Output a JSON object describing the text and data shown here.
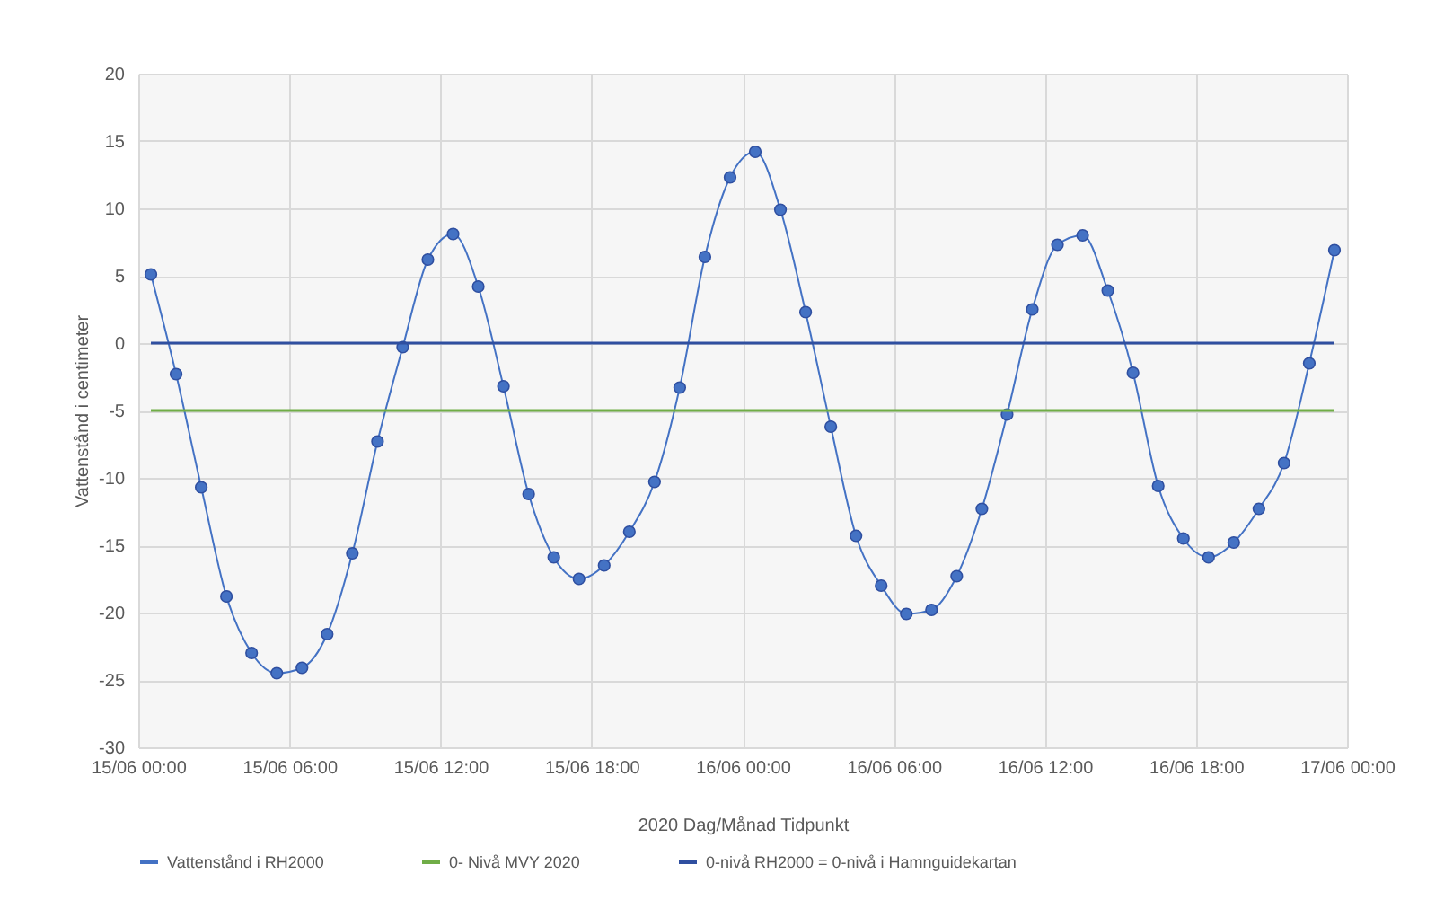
{
  "chart_data": {
    "type": "line",
    "xlabel": "2020 Dag/Månad Tidpunkt",
    "ylabel": "Vattenstånd i centimeter",
    "x": [
      "2020-06-15T00:30",
      "2020-06-15T01:30",
      "2020-06-15T02:30",
      "2020-06-15T03:30",
      "2020-06-15T04:30",
      "2020-06-15T05:30",
      "2020-06-15T06:30",
      "2020-06-15T07:30",
      "2020-06-15T08:30",
      "2020-06-15T09:30",
      "2020-06-15T10:30",
      "2020-06-15T11:30",
      "2020-06-15T12:30",
      "2020-06-15T13:30",
      "2020-06-15T14:30",
      "2020-06-15T15:30",
      "2020-06-15T16:30",
      "2020-06-15T17:30",
      "2020-06-15T18:30",
      "2020-06-15T19:30",
      "2020-06-15T20:30",
      "2020-06-15T21:30",
      "2020-06-15T22:30",
      "2020-06-15T23:30",
      "2020-06-16T00:30",
      "2020-06-16T01:30",
      "2020-06-16T02:30",
      "2020-06-16T03:30",
      "2020-06-16T04:30",
      "2020-06-16T05:30",
      "2020-06-16T06:30",
      "2020-06-16T07:30",
      "2020-06-16T08:30",
      "2020-06-16T09:30",
      "2020-06-16T10:30",
      "2020-06-16T11:30",
      "2020-06-16T12:30",
      "2020-06-16T13:30",
      "2020-06-16T14:30",
      "2020-06-16T15:30",
      "2020-06-16T16:30",
      "2020-06-16T17:30",
      "2020-06-16T18:30",
      "2020-06-16T19:30",
      "2020-06-16T20:30",
      "2020-06-16T21:30",
      "2020-06-16T22:30",
      "2020-06-16T23:30"
    ],
    "series": [
      {
        "name": "Vattenstånd i RH2000",
        "color": "#4472c4",
        "marker": "circle",
        "values": [
          5.1,
          -2.3,
          -10.7,
          -18.8,
          -23.0,
          -24.5,
          -24.1,
          -21.6,
          -15.6,
          -7.3,
          -0.3,
          6.2,
          8.1,
          4.2,
          -3.2,
          -11.2,
          -15.9,
          -17.5,
          -16.5,
          -14.0,
          -10.3,
          -3.3,
          6.4,
          12.3,
          14.2,
          9.9,
          2.3,
          -6.2,
          -14.3,
          -18.0,
          -20.1,
          -19.8,
          -17.3,
          -12.3,
          -5.3,
          2.5,
          7.3,
          8.0,
          3.9,
          -2.2,
          -10.6,
          -14.5,
          -15.9,
          -14.8,
          -12.3,
          -8.9,
          -1.5,
          6.9
        ]
      },
      {
        "name": "0- Nivå MVY 2020",
        "color": "#70ad47",
        "marker": "none",
        "x": [
          "2020-06-15T00:30",
          "2020-06-16T23:30"
        ],
        "values": [
          -5,
          -5
        ]
      },
      {
        "name": "0-nivå RH2000 = 0-nivå i Hamnguidekartan",
        "color": "#2f4fa0",
        "marker": "none",
        "x": [
          "2020-06-15T00:30",
          "2020-06-16T23:30"
        ],
        "values": [
          0,
          0
        ]
      }
    ],
    "xlim": [
      "2020-06-15T00:00",
      "2020-06-17T00:00"
    ],
    "xticks": [
      {
        "value": "2020-06-15T00:00",
        "label": "15/06 00:00"
      },
      {
        "value": "2020-06-15T06:00",
        "label": "15/06 06:00"
      },
      {
        "value": "2020-06-15T12:00",
        "label": "15/06 12:00"
      },
      {
        "value": "2020-06-15T18:00",
        "label": "15/06 18:00"
      },
      {
        "value": "2020-06-16T00:00",
        "label": "16/06 00:00"
      },
      {
        "value": "2020-06-16T06:00",
        "label": "16/06 06:00"
      },
      {
        "value": "2020-06-16T12:00",
        "label": "16/06 12:00"
      },
      {
        "value": "2020-06-16T18:00",
        "label": "16/06 18:00"
      },
      {
        "value": "2020-06-17T00:00",
        "label": "17/06 00:00"
      }
    ],
    "ylim": [
      -30,
      20
    ],
    "yticks": [
      -30,
      -25,
      -20,
      -15,
      -10,
      -5,
      0,
      5,
      10,
      15,
      20
    ],
    "grid": true,
    "legend": "bottom"
  }
}
